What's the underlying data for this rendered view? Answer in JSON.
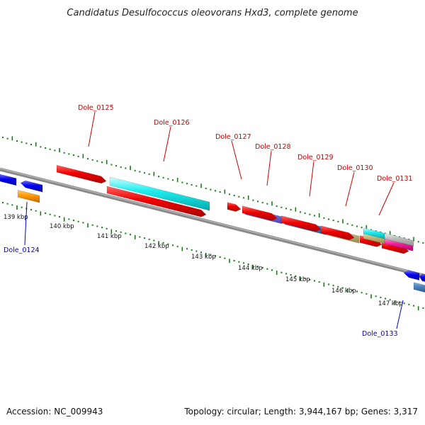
{
  "title": "Candidatus Desulfococcus oleovorans Hxd3, complete genome",
  "footer": {
    "accession": "Accession: NC_009943",
    "summary": "Topology: circular; Length: 3,944,167 bp; Genes: 3,317"
  },
  "colors": {
    "forward_label": "#cc0000",
    "reverse_label": "#0000cc",
    "backbone": "#8a8a8a",
    "ticks": "#1a7a1a"
  },
  "scale_labels": [
    "139 kbp",
    "140 kbp",
    "141 kbp",
    "142 kbp",
    "143 kbp",
    "144 kbp",
    "145 kbp",
    "146 kbp",
    "147 kbp"
  ],
  "gene_labels": [
    {
      "name": "Dole_0124",
      "strand": "reverse"
    },
    {
      "name": "Dole_0125",
      "strand": "forward"
    },
    {
      "name": "Dole_0126",
      "strand": "forward"
    },
    {
      "name": "Dole_0127",
      "strand": "forward"
    },
    {
      "name": "Dole_0128",
      "strand": "forward"
    },
    {
      "name": "Dole_0129",
      "strand": "forward"
    },
    {
      "name": "Dole_0130",
      "strand": "forward"
    },
    {
      "name": "Dole_0131",
      "strand": "forward"
    },
    {
      "name": "Dole_0133",
      "strand": "reverse"
    }
  ]
}
